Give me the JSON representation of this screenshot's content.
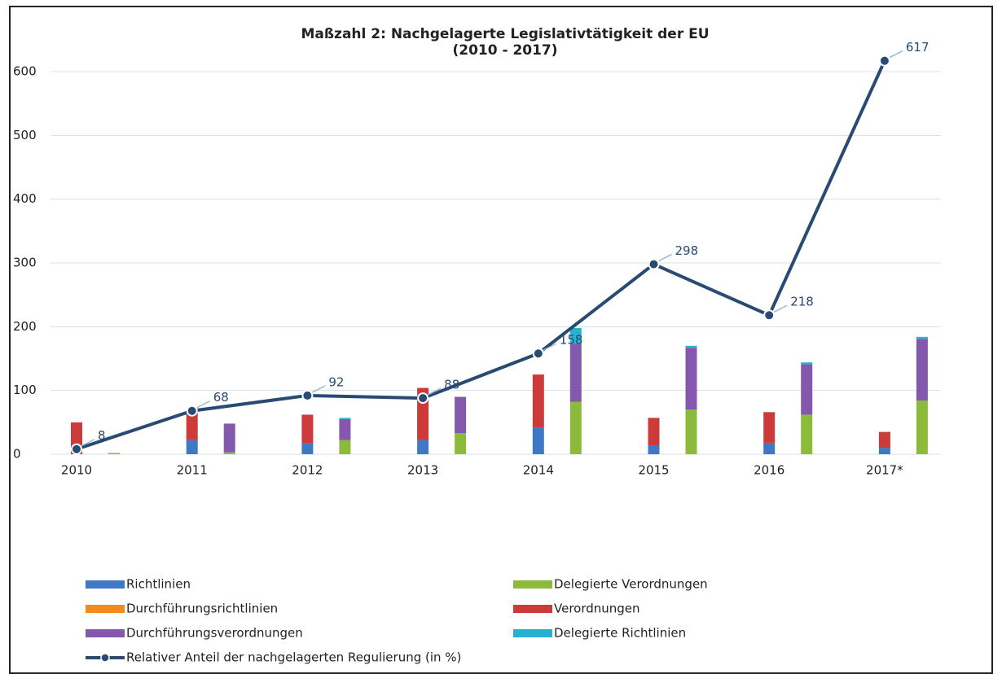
{
  "chart_data": {
    "type": "bar",
    "title": "Maßzahl 2: Nachgelagerte Legislativtätigkeit der EU",
    "subtitle": "(2010 - 2017)",
    "categories": [
      "2010",
      "2011",
      "2012",
      "2013",
      "2014",
      "2015",
      "2016",
      "2017*"
    ],
    "ylim": [
      0,
      640
    ],
    "yticks": [
      0,
      100,
      200,
      300,
      400,
      500,
      600
    ],
    "grid": true,
    "series": [
      {
        "name": "Richtlinien",
        "color": "#3f78c4",
        "stack": 0,
        "values": [
          0,
          22,
          17,
          22,
          42,
          14,
          18,
          10
        ]
      },
      {
        "name": "Delegierte Verordnungen",
        "color": "#8cbb3c",
        "stack": 1,
        "values": [
          2,
          3,
          22,
          33,
          82,
          70,
          62,
          84
        ]
      },
      {
        "name": "Durchführungsrichtlinien",
        "color": "#f28a1c",
        "stack": 0,
        "values": [
          0,
          0,
          0,
          0,
          0,
          0,
          0,
          0
        ]
      },
      {
        "name": "Verordnungen",
        "color": "#cc3a3a",
        "stack": 0,
        "values": [
          50,
          43,
          45,
          82,
          83,
          43,
          48,
          25
        ]
      },
      {
        "name": "Durchführungsverordnungen",
        "color": "#8459ad",
        "stack": 1,
        "values": [
          0,
          45,
          33,
          57,
          91,
          97,
          79,
          97
        ]
      },
      {
        "name": "Delegierte Richtlinien",
        "color": "#2ab0cf",
        "stack": 1,
        "values": [
          0,
          0,
          2,
          0,
          25,
          3,
          3,
          3
        ]
      },
      {
        "name": "Relativer Anteil der nachgelagerten Regulierung (in %)",
        "color": "#284a73",
        "type": "line",
        "values": [
          8,
          68,
          92,
          88,
          158,
          298,
          218,
          617
        ]
      }
    ]
  }
}
